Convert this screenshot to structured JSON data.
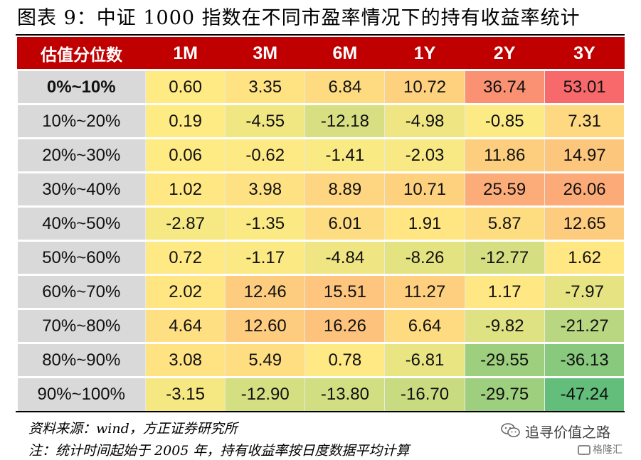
{
  "title": "图表 9：中证 1000 指数在不同市盈率情况下的持有收益率统计",
  "table": {
    "header": [
      "估值分位数",
      "1M",
      "3M",
      "6M",
      "1Y",
      "2Y",
      "3Y"
    ],
    "rows": [
      {
        "label": "0%~10%",
        "values": [
          "0.60",
          "3.35",
          "6.84",
          "10.72",
          "36.74",
          "53.01"
        ]
      },
      {
        "label": "10%~20%",
        "values": [
          "0.19",
          "-4.55",
          "-12.18",
          "-4.98",
          "-0.85",
          "7.31"
        ]
      },
      {
        "label": "20%~30%",
        "values": [
          "0.06",
          "-0.62",
          "-1.41",
          "-2.03",
          "11.86",
          "14.97"
        ]
      },
      {
        "label": "30%~40%",
        "values": [
          "1.02",
          "3.98",
          "8.89",
          "10.71",
          "25.59",
          "26.06"
        ]
      },
      {
        "label": "40%~50%",
        "values": [
          "-2.87",
          "-1.35",
          "6.01",
          "1.91",
          "5.87",
          "12.65"
        ]
      },
      {
        "label": "50%~60%",
        "values": [
          "0.72",
          "-1.17",
          "-4.84",
          "-8.26",
          "-12.77",
          "1.62"
        ]
      },
      {
        "label": "60%~70%",
        "values": [
          "2.02",
          "12.46",
          "15.51",
          "11.27",
          "1.17",
          "-7.97"
        ]
      },
      {
        "label": "70%~80%",
        "values": [
          "4.64",
          "12.60",
          "16.26",
          "6.64",
          "-9.82",
          "-21.27"
        ]
      },
      {
        "label": "80%~90%",
        "values": [
          "3.08",
          "5.49",
          "0.78",
          "-6.81",
          "-29.55",
          "-36.13"
        ]
      },
      {
        "label": "90%~100%",
        "values": [
          "-3.15",
          "-12.90",
          "-13.80",
          "-16.70",
          "-29.75",
          "-47.24"
        ]
      }
    ]
  },
  "source": "资料来源：wind，方正证券研究所",
  "footnote": "注：统计时间起始于 2005 年，持有收益率按日度数据平均计算",
  "watermark": {
    "text": "追寻价值之路",
    "logo_text": "格隆汇",
    "icon": "wechat-icon"
  },
  "colors": {
    "header_bg": "#c00000",
    "header_text": "#ffffff",
    "label_bg": "#d9d9d9",
    "scale_low": "#63be7b",
    "scale_mid": "#ffeb84",
    "scale_high": "#f8696b"
  }
}
